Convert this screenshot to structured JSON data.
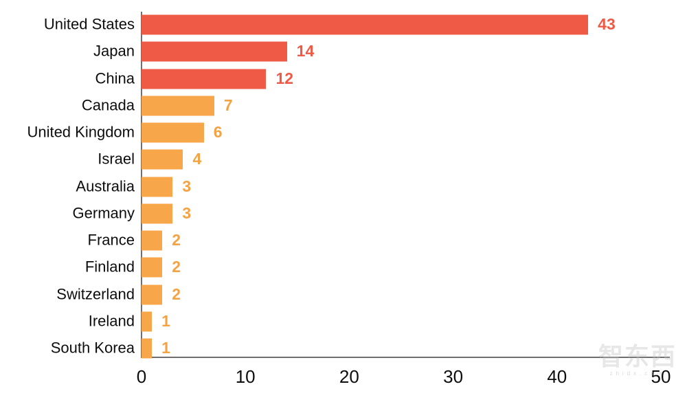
{
  "chart_data": {
    "type": "bar",
    "orientation": "horizontal",
    "title": "",
    "xlabel": "",
    "ylabel": "",
    "categories": [
      "United States",
      "Japan",
      "China",
      "Canada",
      "United Kingdom",
      "Israel",
      "Australia",
      "Germany",
      "France",
      "Finland",
      "Switzerland",
      "Ireland",
      "South Korea"
    ],
    "values": [
      43,
      14,
      12,
      7,
      6,
      4,
      3,
      3,
      2,
      2,
      2,
      1,
      1
    ],
    "bar_colors": [
      "#ee5a45",
      "#ee5a45",
      "#ee5a45",
      "#f8a64a",
      "#f8a64a",
      "#f8a64a",
      "#f8a64a",
      "#f8a64a",
      "#f8a64a",
      "#f8a64a",
      "#f8a64a",
      "#f8a64a",
      "#f8a64a"
    ],
    "value_label_colors": [
      "#ee5a45",
      "#ee5a45",
      "#ee5a45",
      "#f5a243",
      "#f5a243",
      "#f5a243",
      "#f5a243",
      "#f5a243",
      "#f5a243",
      "#f5a243",
      "#f5a243",
      "#f5a243",
      "#f5a243"
    ],
    "xlim": [
      0,
      50
    ],
    "x_ticks": [
      "0",
      "10",
      "20",
      "30",
      "40",
      "50"
    ],
    "grid": false,
    "legend": null,
    "colors": {
      "red_accent": "#ee5a45",
      "orange_accent": "#f8a64a",
      "axis": "#6f6f6f",
      "text": "#0d0d0d"
    }
  },
  "watermark": {
    "logo_text": "智东西",
    "sub_text": "zhidx.com"
  }
}
